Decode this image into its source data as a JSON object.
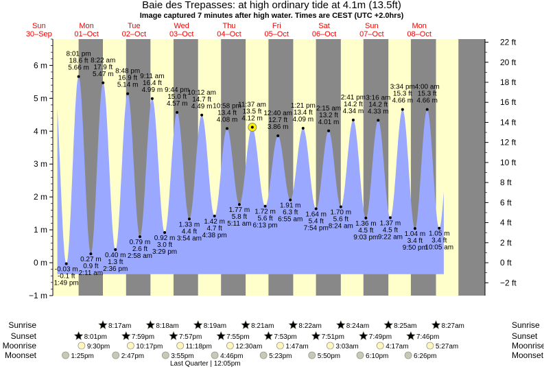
{
  "chart_data": {
    "type": "area",
    "title": "Baie des Trepasses: at high  ordinary tide at 4.1m (13.5ft)",
    "subtitle": "Image captured 7 minutes after high water. Times are CEST (UTC +2.0hrs)",
    "ylabel_left_unit": "m",
    "ylabel_right_unit": "ft",
    "ylim_m": [
      -1,
      6.8
    ],
    "yticks_m": [
      -1,
      0,
      1,
      2,
      3,
      4,
      5,
      6
    ],
    "yticks_m_labels": [
      "−1 m",
      "0 m",
      "1 m",
      "2 m",
      "3 m",
      "4 m",
      "5 m",
      "6 m"
    ],
    "yticks_ft": [
      -2,
      0,
      2,
      4,
      6,
      8,
      10,
      12,
      14,
      16,
      18,
      20,
      22
    ],
    "yticks_ft_labels": [
      "−2 ft",
      "0 ft",
      "2 ft",
      "4 ft",
      "6 ft",
      "8 ft",
      "10 ft",
      "12 ft",
      "14 ft",
      "16 ft",
      "18 ft",
      "20 ft",
      "22 ft"
    ],
    "xlim_hours": [
      7.0,
      225.2
    ],
    "days": [
      {
        "name": "Sun",
        "date": "30–Sep",
        "midnight_h": 0
      },
      {
        "name": "Mon",
        "date": "01–Oct",
        "midnight_h": 24
      },
      {
        "name": "Tue",
        "date": "02–Oct",
        "midnight_h": 48
      },
      {
        "name": "Wed",
        "date": "03–Oct",
        "midnight_h": 72
      },
      {
        "name": "Thu",
        "date": "04–Oct",
        "midnight_h": 96
      },
      {
        "name": "Fri",
        "date": "05–Oct",
        "midnight_h": 120
      },
      {
        "name": "Sat",
        "date": "06–Oct",
        "midnight_h": 144
      },
      {
        "name": "Sun",
        "date": "07–Oct",
        "midnight_h": 168
      },
      {
        "name": "Mon",
        "date": "08–Oct",
        "midnight_h": 192
      }
    ],
    "nights": [
      [
        20.02,
        32.28
      ],
      [
        43.98,
        56.3
      ],
      [
        67.95,
        80.32
      ],
      [
        91.92,
        104.35
      ],
      [
        115.88,
        128.37
      ],
      [
        139.85,
        152.4
      ],
      [
        163.82,
        176.42
      ],
      [
        187.77,
        200.45
      ],
      [
        211.78,
        225.2
      ]
    ],
    "tide_events": [
      {
        "h": 13.82,
        "m": -0.03,
        "ft": "-0.1 ft",
        "time": "1:49 pm",
        "type": "low"
      },
      {
        "h": 20.02,
        "m": 5.66,
        "ft": "18.6 ft",
        "time": "8:01 pm",
        "type": "high"
      },
      {
        "h": 26.18,
        "m": 0.27,
        "ft": "0.9 ft",
        "time": "2:11 am",
        "type": "low"
      },
      {
        "h": 32.37,
        "m": 5.47,
        "ft": "17.9 ft",
        "time": "8:22 am",
        "type": "high"
      },
      {
        "h": 38.6,
        "m": 0.4,
        "ft": "1.3 ft",
        "time": "2:36 pm",
        "type": "low"
      },
      {
        "h": 44.8,
        "m": 5.14,
        "ft": "16.9 ft",
        "time": "8:48 pm",
        "type": "high"
      },
      {
        "h": 50.97,
        "m": 0.79,
        "ft": "2.6 ft",
        "time": "2:58 am",
        "type": "low"
      },
      {
        "h": 57.18,
        "m": 4.99,
        "ft": "16.4 ft",
        "time": "9:11 am",
        "type": "high"
      },
      {
        "h": 63.48,
        "m": 0.92,
        "ft": "3.0 ft",
        "time": "3:29 pm",
        "type": "low"
      },
      {
        "h": 69.73,
        "m": 4.57,
        "ft": "15.0 ft",
        "time": "9:44 pm",
        "type": "high"
      },
      {
        "h": 75.9,
        "m": 1.33,
        "ft": "4.4 ft",
        "time": "3:54 am",
        "type": "low"
      },
      {
        "h": 82.2,
        "m": 4.49,
        "ft": "14.7 ft",
        "time": "10:12 am",
        "type": "high"
      },
      {
        "h": 88.63,
        "m": 1.42,
        "ft": "4.7 ft",
        "time": "4:38 pm",
        "type": "low"
      },
      {
        "h": 94.97,
        "m": 4.08,
        "ft": "13.4 ft",
        "time": "10:58 pm",
        "type": "high"
      },
      {
        "h": 101.18,
        "m": 1.77,
        "ft": "5.8 ft",
        "time": "5:11 am",
        "type": "low"
      },
      {
        "h": 107.62,
        "m": 4.12,
        "ft": "13.5 ft",
        "time": "11:37 am",
        "type": "high"
      },
      {
        "h": 114.22,
        "m": 1.72,
        "ft": "5.6 ft",
        "time": "6:13 pm",
        "type": "low"
      },
      {
        "h": 120.67,
        "m": 3.86,
        "ft": "12.7 ft",
        "time": "12:40 am",
        "type": "high"
      },
      {
        "h": 126.92,
        "m": 1.91,
        "ft": "6.3 ft",
        "time": "6:55 am",
        "type": "low"
      },
      {
        "h": 133.35,
        "m": 4.09,
        "ft": "13.4 ft",
        "time": "1:21 pm",
        "type": "high"
      },
      {
        "h": 139.9,
        "m": 1.64,
        "ft": "5.4 ft",
        "time": "7:54 pm",
        "type": "low"
      },
      {
        "h": 146.25,
        "m": 4.01,
        "ft": "13.2 ft",
        "time": "2:15 am",
        "type": "high"
      },
      {
        "h": 152.4,
        "m": 1.7,
        "ft": "5.6 ft",
        "time": "8:24 am",
        "type": "low"
      },
      {
        "h": 158.68,
        "m": 4.34,
        "ft": "14.2 ft",
        "time": "2:41 pm",
        "type": "high"
      },
      {
        "h": 165.05,
        "m": 1.36,
        "ft": "4.5 ft",
        "time": "9:03 pm",
        "type": "low"
      },
      {
        "h": 171.27,
        "m": 4.33,
        "ft": "14.2 ft",
        "time": "3:16 am",
        "type": "high"
      },
      {
        "h": 177.37,
        "m": 1.37,
        "ft": "4.5 ft",
        "time": "9:22 am",
        "type": "low"
      },
      {
        "h": 183.57,
        "m": 4.66,
        "ft": "15.3 ft",
        "time": "3:34 pm",
        "type": "high"
      },
      {
        "h": 189.83,
        "m": 1.04,
        "ft": "3.4 ft",
        "time": "9:50 pm",
        "type": "low"
      },
      {
        "h": 196.0,
        "m": 4.66,
        "ft": "15.3 ft",
        "time": "4:00 am",
        "type": "high"
      },
      {
        "h": 202.08,
        "m": 1.05,
        "ft": "3.4 ft",
        "time": "10:05 am",
        "type": "low"
      }
    ],
    "current_marker": {
      "h": 107.73,
      "m": 4.12
    },
    "rows": {
      "sunrise": {
        "label": "Sunrise",
        "items": [
          {
            "h": 32.28,
            "text": "8:17am"
          },
          {
            "h": 56.3,
            "text": "8:18am"
          },
          {
            "h": 80.32,
            "text": "8:19am"
          },
          {
            "h": 104.35,
            "text": "8:21am"
          },
          {
            "h": 128.37,
            "text": "8:22am"
          },
          {
            "h": 152.4,
            "text": "8:24am"
          },
          {
            "h": 176.42,
            "text": "8:25am"
          },
          {
            "h": 200.45,
            "text": "8:27am"
          }
        ]
      },
      "sunset": {
        "label": "Sunset",
        "items": [
          {
            "h": 20.02,
            "text": "8:01pm"
          },
          {
            "h": 43.98,
            "text": "7:59pm"
          },
          {
            "h": 67.95,
            "text": "7:57pm"
          },
          {
            "h": 91.92,
            "text": "7:55pm"
          },
          {
            "h": 115.88,
            "text": "7:53pm"
          },
          {
            "h": 139.85,
            "text": "7:51pm"
          },
          {
            "h": 163.82,
            "text": "7:49pm"
          },
          {
            "h": 187.77,
            "text": "7:46pm"
          }
        ]
      },
      "moonrise": {
        "label": "Moonrise",
        "items": [
          {
            "h": 21.5,
            "text": "9:30pm"
          },
          {
            "h": 46.28,
            "text": "10:17pm"
          },
          {
            "h": 71.3,
            "text": "11:18pm"
          },
          {
            "h": 96.5,
            "text": "12:30am"
          },
          {
            "h": 121.78,
            "text": "1:47am"
          },
          {
            "h": 147.05,
            "text": "3:03am"
          },
          {
            "h": 172.28,
            "text": "4:17am"
          },
          {
            "h": 197.45,
            "text": "5:27am"
          }
        ]
      },
      "moonset": {
        "label": "Moonset",
        "items": [
          {
            "h": 13.42,
            "text": "1:25pm"
          },
          {
            "h": 38.78,
            "text": "2:47pm"
          },
          {
            "h": 63.92,
            "text": "3:55pm"
          },
          {
            "h": 88.77,
            "text": "4:46pm"
          },
          {
            "h": 113.38,
            "text": "5:23pm"
          },
          {
            "h": 137.83,
            "text": "5:50pm"
          },
          {
            "h": 162.17,
            "text": "6:10pm"
          },
          {
            "h": 186.43,
            "text": "6:26pm"
          }
        ]
      }
    },
    "moon_phase": {
      "h": 84.0,
      "text": "Last Quarter | 12:05pm"
    }
  },
  "colors": {
    "day_bg": "#ffffcc",
    "night_bg": "#888888",
    "tide_fill": "#9aa8ff",
    "day_label": "#ee0000",
    "text": "#000000",
    "sun_star": "#f0d000",
    "sunset_star": "#b86a3a",
    "moonrise": "#fff6c0",
    "moonset": "#c8c8b8"
  }
}
